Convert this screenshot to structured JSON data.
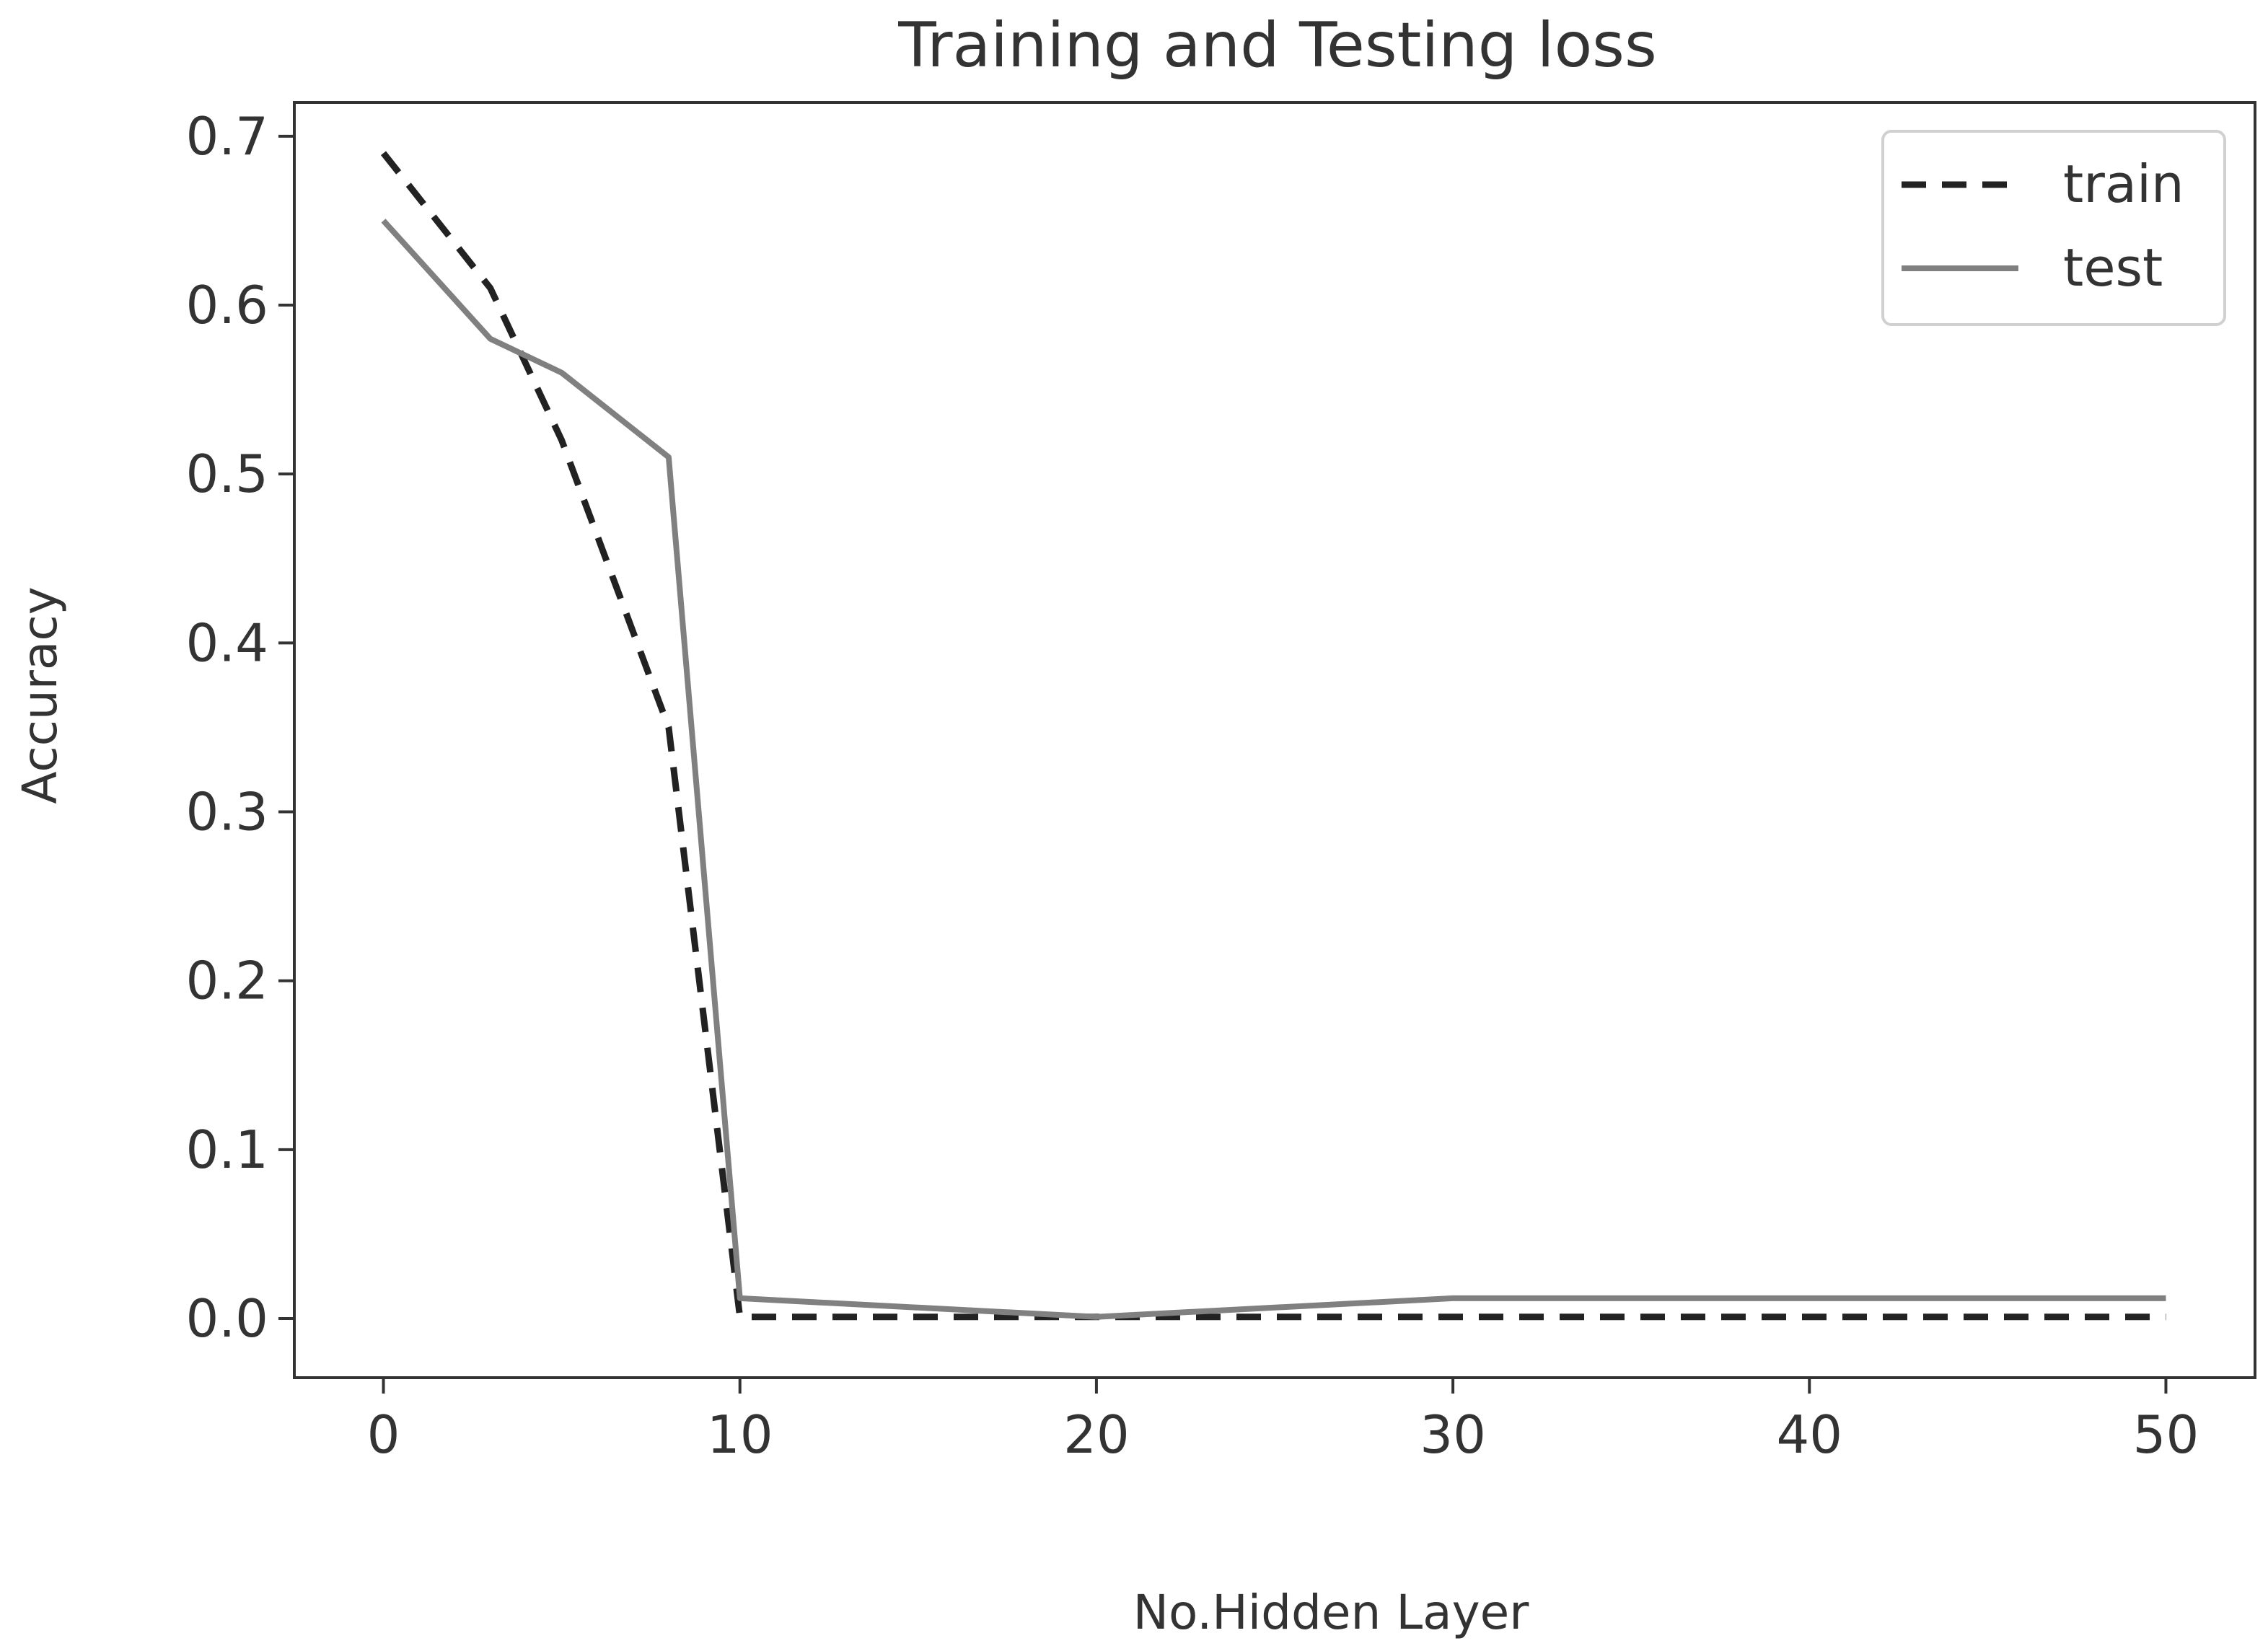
{
  "chart_data": {
    "type": "line",
    "title": "Training and Testing loss",
    "xlabel": "No.Hidden Layer",
    "ylabel": "Accuracy",
    "xlim": [
      -2.5,
      52.5
    ],
    "ylim": [
      -0.035,
      0.72
    ],
    "xticks": [
      0,
      10,
      20,
      30,
      40,
      50
    ],
    "xtick_labels": [
      "0",
      "10",
      "20",
      "30",
      "40",
      "50"
    ],
    "yticks": [
      0.0,
      0.1,
      0.2,
      0.3,
      0.4,
      0.5,
      0.6,
      0.7
    ],
    "ytick_labels": [
      "0.0",
      "0.1",
      "0.2",
      "0.3",
      "0.4",
      "0.5",
      "0.6",
      "0.7"
    ],
    "grid": false,
    "legend_position": "top-right",
    "series": [
      {
        "name": "train",
        "style": "dashed",
        "color": "#222222",
        "x": [
          0,
          3,
          5,
          8,
          10,
          20,
          30,
          40,
          50
        ],
        "y": [
          0.69,
          0.61,
          0.52,
          0.35,
          0.001,
          0.001,
          0.001,
          0.001,
          0.001
        ]
      },
      {
        "name": "test",
        "style": "solid",
        "color": "#808080",
        "x": [
          0,
          3,
          5,
          8,
          10,
          20,
          30,
          40,
          50
        ],
        "y": [
          0.65,
          0.58,
          0.56,
          0.51,
          0.012,
          0.001,
          0.012,
          0.012,
          0.012
        ]
      }
    ]
  }
}
